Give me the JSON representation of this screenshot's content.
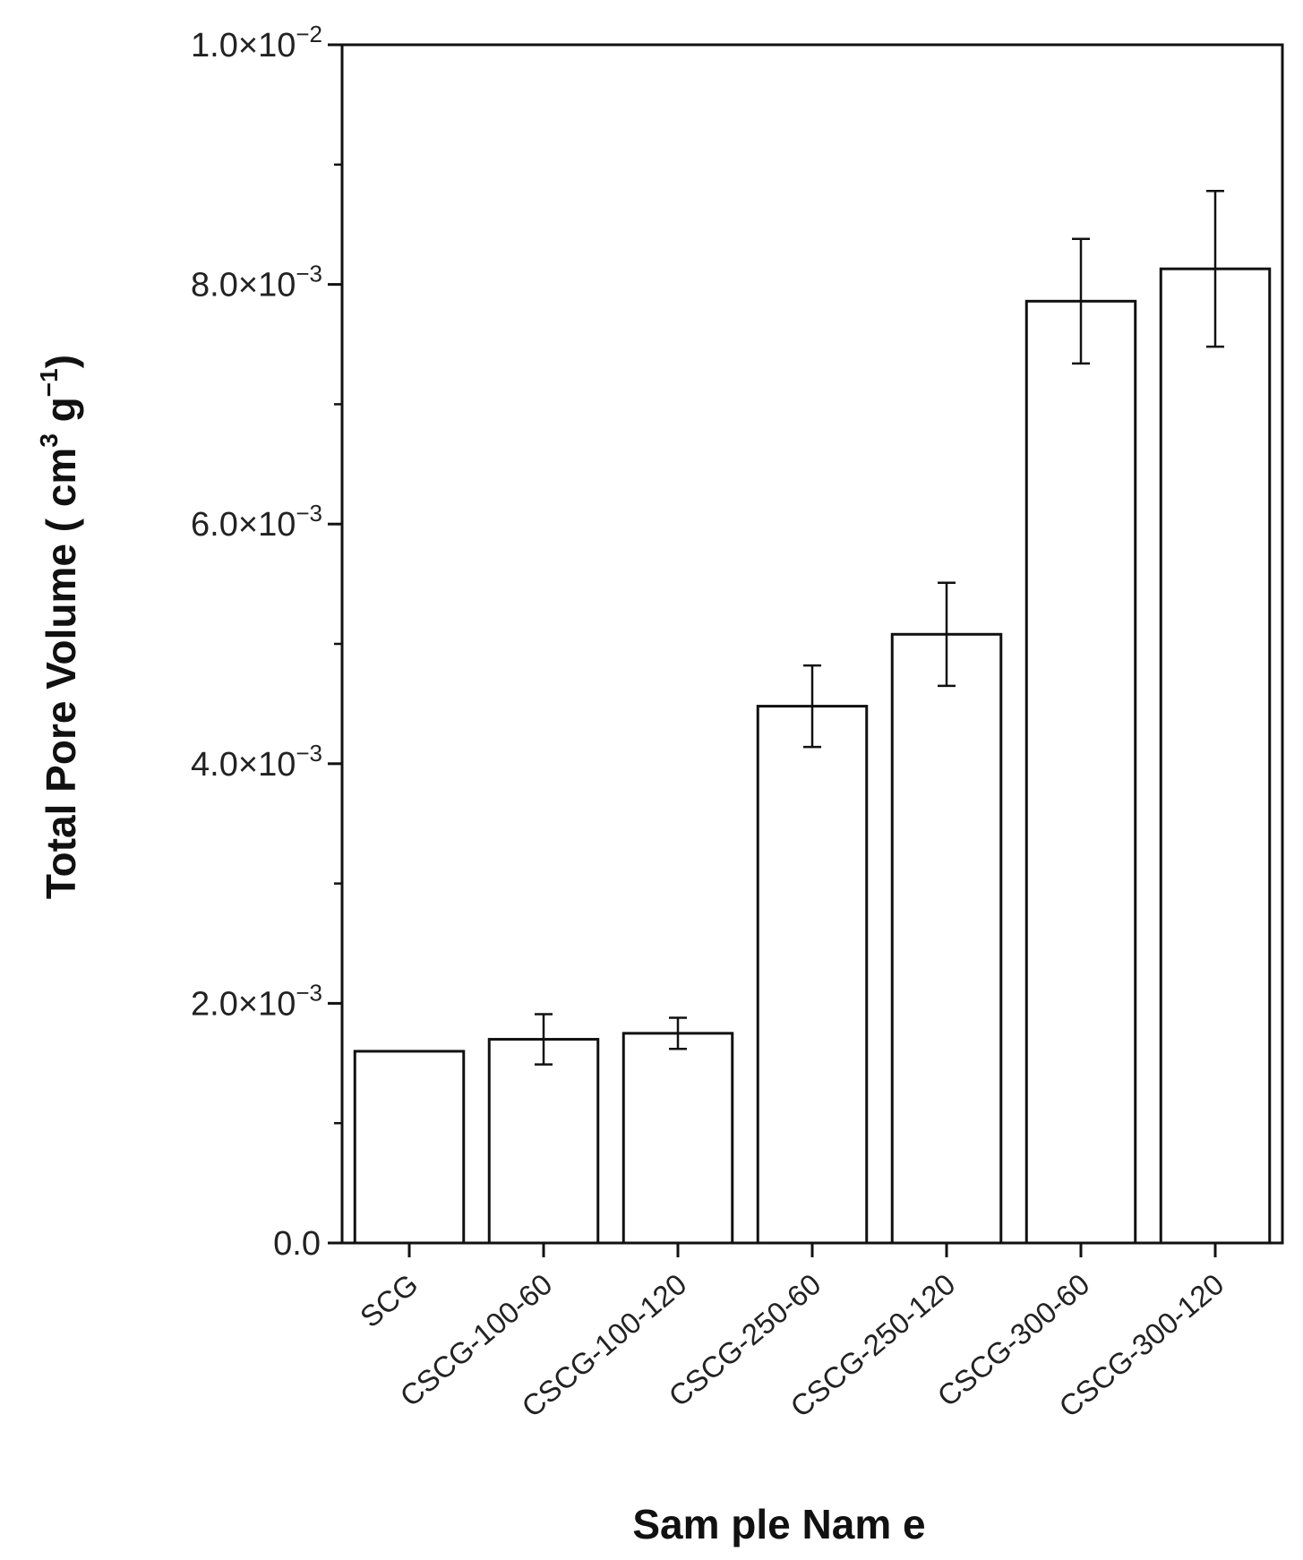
{
  "chart_data": {
    "type": "bar",
    "title": "",
    "xlabel": "Sam ple Nam e",
    "ylabel": {
      "main": "Total Pore Volume ( cm",
      "sup1": "3",
      "mid": " g",
      "sup2": "−1",
      "end": ")"
    },
    "categories": [
      "SCG",
      "CSCG-100-60",
      "CSCG-100-120",
      "CSCG-250-60",
      "CSCG-250-120",
      "CSCG-300-60",
      "CSCG-300-120"
    ],
    "series": [
      {
        "values": [
          0.0016,
          0.0017,
          0.00175,
          0.00448,
          0.00508,
          0.00786,
          0.00813
        ],
        "errors": [
          0.0,
          0.00021,
          0.00013,
          0.00034,
          0.00043,
          0.00052,
          0.00065
        ]
      }
    ],
    "ylim": [
      0,
      0.01
    ],
    "yticks": [
      {
        "mantissa": "0.0",
        "exponent": ""
      },
      {
        "mantissa": "2.0×10",
        "exponent": "−3"
      },
      {
        "mantissa": "4.0×10",
        "exponent": "−3"
      },
      {
        "mantissa": "6.0×10",
        "exponent": "−3"
      },
      {
        "mantissa": "8.0×10",
        "exponent": "−3"
      },
      {
        "mantissa": "1.0×10",
        "exponent": "−2"
      }
    ],
    "ytick_values": [
      0,
      0.002,
      0.004,
      0.006,
      0.008,
      0.01
    ],
    "grid": false,
    "legend": "none",
    "colors": {
      "bar_fill": "#ffffff",
      "bar_stroke": "#111111",
      "axis": "#111111",
      "text": "#222222"
    }
  }
}
